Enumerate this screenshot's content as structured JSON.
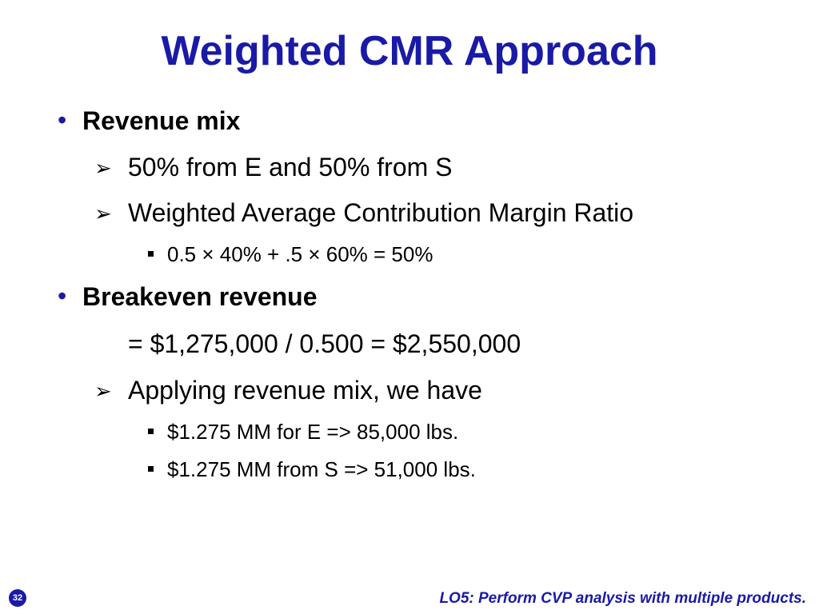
{
  "slide": {
    "title": "Weighted CMR Approach",
    "page_number": "32",
    "footer": "LO5:  Perform CVP analysis with multiple products."
  },
  "content": {
    "bullet_symbol": "•",
    "arrow_symbol": "➢",
    "revenue_mix": {
      "heading": "Revenue mix",
      "point1": "50% from E and 50% from S",
      "point2": "Weighted Average Contribution Margin Ratio",
      "calc": "0.5 × 40% + .5 × 60% = 50%"
    },
    "breakeven": {
      "heading": "Breakeven revenue",
      "equation": "= $1,275,000 / 0.500 = $2,550,000",
      "point": "Applying revenue mix, we have",
      "sub1": "$1.275 MM for E => 85,000 lbs.",
      "sub2": "$1.275 MM from S => 51,000 lbs."
    }
  }
}
